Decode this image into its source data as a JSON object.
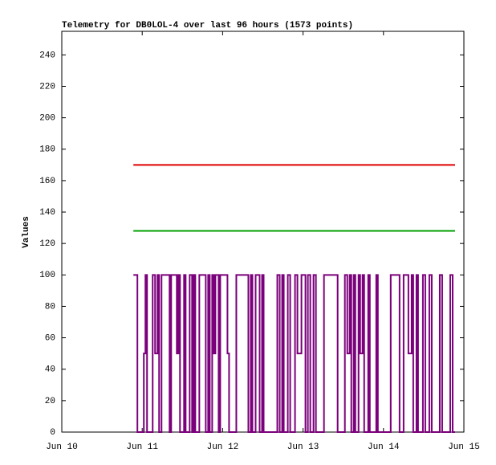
{
  "chart_data": {
    "type": "line",
    "title": "Telemetry for DB0LOL-4 over last 96 hours (1573 points)",
    "y_label": "Values",
    "xlim": [
      10,
      15
    ],
    "xticks": [
      {
        "value": 10,
        "label": "Jun 10"
      },
      {
        "value": 11,
        "label": "Jun 11"
      },
      {
        "value": 12,
        "label": "Jun 12"
      },
      {
        "value": 13,
        "label": "Jun 13"
      },
      {
        "value": 14,
        "label": "Jun 14"
      },
      {
        "value": 15,
        "label": "Jun 15"
      }
    ],
    "ylim": [
      0,
      255
    ],
    "yticks": [
      0,
      20,
      40,
      60,
      80,
      100,
      120,
      140,
      160,
      180,
      200,
      220,
      240
    ],
    "step": true,
    "series": [
      {
        "color": "#e00000",
        "x": [
          10.89,
          14.89
        ],
        "values": [
          170,
          170
        ]
      },
      {
        "color": "#00a000",
        "x": [
          10.89,
          14.89
        ],
        "values": [
          128,
          128
        ]
      },
      {
        "color": "#7b007b",
        "x": [
          10.89,
          10.94,
          11.02,
          11.04,
          11.06,
          11.13,
          11.16,
          11.19,
          11.21,
          11.24,
          11.34,
          11.36,
          11.43,
          11.45,
          11.47,
          11.52,
          11.54,
          11.59,
          11.62,
          11.64,
          11.66,
          11.71,
          11.79,
          11.82,
          11.84,
          11.87,
          11.89,
          11.91,
          11.95,
          11.97,
          12.06,
          12.08,
          12.17,
          12.32,
          12.35,
          12.37,
          12.41,
          12.46,
          12.49,
          12.51,
          12.68,
          12.71,
          12.74,
          12.76,
          12.81,
          12.84,
          12.9,
          12.93,
          12.98,
          13.03,
          13.06,
          13.09,
          13.13,
          13.16,
          13.26,
          13.43,
          13.52,
          13.55,
          13.58,
          13.6,
          13.63,
          13.65,
          13.69,
          13.71,
          13.74,
          13.76,
          13.81,
          13.83,
          13.91,
          13.93,
          14.09,
          14.2,
          14.25,
          14.31,
          14.35,
          14.37,
          14.41,
          14.43,
          14.49,
          14.52,
          14.57,
          14.6,
          14.7,
          14.73,
          14.83,
          14.86,
          14.89
        ],
        "values": [
          100,
          0,
          50,
          100,
          0,
          100,
          50,
          100,
          0,
          100,
          0,
          100,
          50,
          100,
          0,
          100,
          0,
          100,
          0,
          100,
          0,
          100,
          0,
          100,
          0,
          100,
          50,
          100,
          0,
          100,
          50,
          0,
          100,
          0,
          100,
          0,
          100,
          0,
          100,
          0,
          100,
          0,
          100,
          0,
          100,
          0,
          100,
          50,
          100,
          0,
          100,
          0,
          100,
          0,
          100,
          0,
          100,
          50,
          100,
          0,
          100,
          0,
          100,
          50,
          100,
          0,
          100,
          0,
          100,
          0,
          100,
          0,
          100,
          50,
          100,
          0,
          100,
          0,
          100,
          0,
          100,
          0,
          100,
          0,
          100,
          0,
          0
        ]
      }
    ]
  }
}
